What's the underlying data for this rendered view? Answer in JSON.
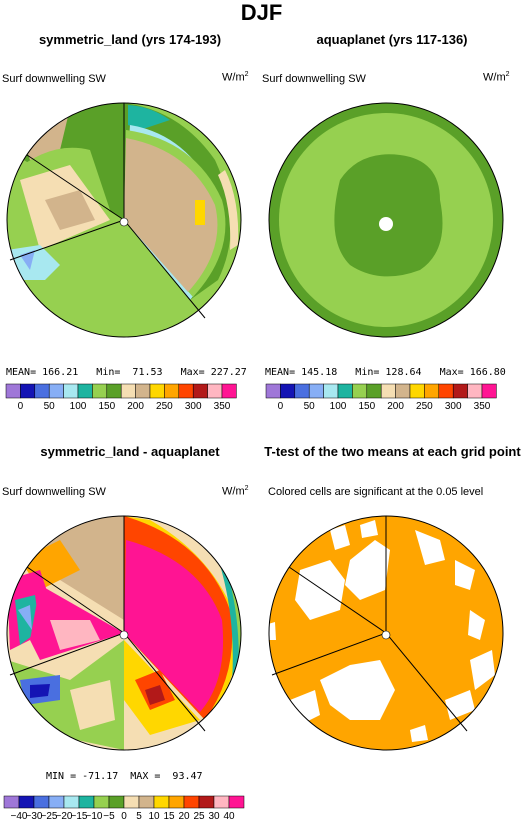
{
  "title": "DJF",
  "panels": [
    {
      "title": "symmetric_land (yrs 174-193)",
      "left_label": "Surf downwelling SW",
      "right_label_base": "W/m",
      "right_label_sup": "2",
      "stats": "MEAN= 166.21   Min=  71.53   Max= 227.27"
    },
    {
      "title": "aquaplanet (yrs 117-136)",
      "left_label": "Surf downwelling SW",
      "right_label_base": "W/m",
      "right_label_sup": "2",
      "stats": "MEAN= 145.18   Min= 128.64   Max= 166.80"
    },
    {
      "title": "symmetric_land - aquaplanet",
      "left_label": "Surf downwelling SW",
      "right_label_base": "W/m",
      "right_label_sup": "2",
      "stats": "MIN = -71.17  MAX =  93.47"
    },
    {
      "title": "T-test of the two means at each grid point",
      "left_label": "Colored cells are significant at the 0.05 level"
    }
  ],
  "colorbar_abs": {
    "colors": [
      "#9f77d8",
      "#1414b4",
      "#4a6fe0",
      "#87aef5",
      "#a8e8f0",
      "#1eb4a0",
      "#96d050",
      "#5aa028",
      "#f5deb3",
      "#d2b48c",
      "#ffd700",
      "#ffa500",
      "#ff4500",
      "#b21919",
      "#ffb6c1",
      "#ff1493"
    ],
    "labels": [
      "0",
      "50",
      "100",
      "150",
      "200",
      "250",
      "300",
      "350"
    ]
  },
  "colorbar_diff": {
    "colors": [
      "#9f77d8",
      "#1414b4",
      "#4a6fe0",
      "#87aef5",
      "#a8e8f0",
      "#1eb4a0",
      "#96d050",
      "#5aa028",
      "#f5deb3",
      "#d2b48c",
      "#ffd700",
      "#ffa500",
      "#ff4500",
      "#b21919",
      "#ffb6c1",
      "#ff1493"
    ],
    "labels": [
      "−40",
      "−30",
      "−25",
      "−20",
      "−15",
      "−10",
      "−5",
      "0",
      "5",
      "10",
      "15",
      "20",
      "25",
      "30",
      "40"
    ]
  }
}
